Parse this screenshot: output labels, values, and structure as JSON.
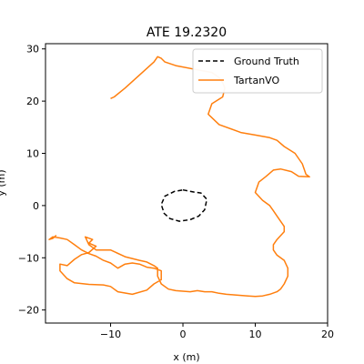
{
  "chart_data": {
    "type": "line",
    "title": "ATE 19.2320",
    "xlabel": "x (m)",
    "ylabel": "y (m)",
    "xlim": [
      -19,
      20
    ],
    "ylim": [
      -22.5,
      31
    ],
    "xticks": [
      -10,
      0,
      10,
      20
    ],
    "yticks": [
      -20,
      -10,
      0,
      10,
      20,
      30
    ],
    "grid": false,
    "legend_position": "top-right",
    "series": [
      {
        "name": "Ground Truth",
        "color": "#000000",
        "style": "dashed",
        "x": [
          0.0,
          1.5,
          2.5,
          3.3,
          3.0,
          2.2,
          1.0,
          -0.5,
          -1.8,
          -2.6,
          -3.0,
          -2.5,
          -1.2,
          0.0
        ],
        "y": [
          3.0,
          2.6,
          2.4,
          1.2,
          -0.8,
          -2.0,
          -2.7,
          -3.0,
          -2.5,
          -1.5,
          0.2,
          1.8,
          2.7,
          3.0
        ]
      },
      {
        "name": "TartanVO",
        "color": "#ff7f0e",
        "style": "solid",
        "x": [
          -10,
          -9.5,
          -8,
          -6,
          -4,
          -3.5,
          -3,
          -2.5,
          -1,
          2,
          4,
          5,
          5.5,
          5.8,
          5.5,
          4,
          3.5,
          5,
          8,
          10,
          12,
          13,
          14,
          15.5,
          16.5,
          17,
          17.5,
          16,
          15,
          13.5,
          12.5,
          11.5,
          10.5,
          10,
          11,
          11.5,
          12,
          12.5,
          13,
          13.5,
          14,
          14,
          13,
          12.5,
          12.5,
          13,
          14,
          14.5,
          14.5,
          14,
          13.5,
          13,
          12,
          11,
          10,
          9,
          8,
          7,
          6,
          5,
          4,
          3,
          2,
          1,
          0,
          -1,
          -2,
          -3,
          -3.5,
          -3.5,
          -4,
          -5,
          -6,
          -8,
          -10,
          -12,
          -13,
          -13.5,
          -12.5,
          -13,
          -12,
          -13,
          -14,
          -15,
          -16,
          -17,
          -17,
          -16,
          -15,
          -13,
          -11,
          -10,
          -9,
          -7,
          -5,
          -4,
          -3,
          -3,
          -4,
          -5,
          -6,
          -7,
          -8,
          -9,
          -10,
          -11,
          -12,
          -13,
          -14,
          -15,
          -16,
          -17,
          -18,
          -18.5,
          -18,
          -17.5
        ],
        "y": [
          20.5,
          20.8,
          22.5,
          25,
          27.5,
          28.5,
          28.2,
          27.5,
          26.8,
          26,
          25.5,
          24.5,
          23.5,
          22.5,
          20.8,
          19.5,
          17.5,
          15.5,
          14,
          13.5,
          13,
          12.5,
          11.3,
          10,
          8,
          6,
          5.5,
          5.6,
          6.5,
          7,
          6.8,
          5.6,
          4.5,
          2.5,
          1,
          0.5,
          0,
          -1,
          -2,
          -3,
          -4,
          -5,
          -6.5,
          -7.5,
          -8.5,
          -9.5,
          -10.5,
          -12,
          -13.5,
          -15,
          -16,
          -16.5,
          -17,
          -17.3,
          -17.4,
          -17.3,
          -17.2,
          -17.1,
          -17,
          -16.8,
          -16.5,
          -16.5,
          -16.3,
          -16.5,
          -16.4,
          -16.3,
          -16,
          -15,
          -13.5,
          -12,
          -11.5,
          -10.8,
          -10.5,
          -9.8,
          -8.5,
          -8.5,
          -7.5,
          -6,
          -6.5,
          -7.2,
          -7.8,
          -9,
          -9.4,
          -10.3,
          -11.5,
          -11.2,
          -12.5,
          -14,
          -14.8,
          -15.1,
          -15.2,
          -15.5,
          -16.5,
          -17,
          -16.2,
          -15,
          -14.2,
          -12.5,
          -12,
          -11.8,
          -11.2,
          -11,
          -11.2,
          -12,
          -11,
          -10.5,
          -9.7,
          -9.2,
          -8.5,
          -7.5,
          -6.5,
          -6.2,
          -6.0,
          -6.5,
          -6.3,
          -5.7
        ]
      }
    ]
  }
}
